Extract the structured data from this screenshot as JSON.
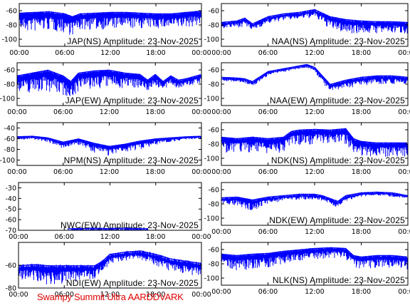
{
  "footer": "Swampy Summit Ultra AARDDVARK",
  "colors": {
    "trace": "#0000ff",
    "axis": "#000000",
    "footer": "#e00000",
    "background": "#ffffff"
  },
  "x_tick_labels": [
    "00:00",
    "06:00",
    "12:00",
    "18:00",
    "00:00"
  ],
  "chart_data": [
    {
      "type": "line",
      "title": "JAP(NS) Amplitude: 23-Nov-2025",
      "xlabel": "",
      "ylabel": "",
      "x_ticks": [
        "00:00",
        "06:00",
        "12:00",
        "18:00",
        "00:00"
      ],
      "yticks": [
        -60,
        -80,
        -100
      ],
      "ylim": [
        -110,
        -50
      ],
      "series": [
        {
          "x": [
            0,
            2,
            4,
            6,
            7,
            8,
            10,
            12,
            14,
            16,
            18,
            20,
            22,
            24
          ],
          "mean": [
            -65,
            -64,
            -63,
            -66,
            -70,
            -66,
            -65,
            -64,
            -64,
            -65,
            -66,
            -66,
            -64,
            -62
          ],
          "low": [
            -90,
            -90,
            -88,
            -92,
            -95,
            -88,
            -87,
            -86,
            -86,
            -85,
            -85,
            -86,
            -84,
            -80
          ]
        }
      ]
    },
    {
      "type": "line",
      "title": "NAA(NS) Amplitude: 23-Nov-2025",
      "xlabel": "",
      "ylabel": "",
      "x_ticks": [
        "00:00",
        "06:00",
        "12:00",
        "18:00",
        "00:00"
      ],
      "yticks": [
        -60,
        -80,
        -100
      ],
      "ylim": [
        -110,
        -50
      ],
      "series": [
        {
          "x": [
            0,
            2,
            3,
            4,
            6,
            8,
            10,
            12,
            14,
            16,
            18,
            20,
            22,
            24
          ],
          "mean": [
            -78,
            -76,
            -72,
            -80,
            -70,
            -66,
            -64,
            -60,
            -70,
            -74,
            -76,
            -77,
            -77,
            -78
          ],
          "low": [
            -85,
            -84,
            -82,
            -88,
            -78,
            -74,
            -72,
            -70,
            -86,
            -92,
            -92,
            -92,
            -92,
            -92
          ]
        }
      ]
    },
    {
      "type": "line",
      "title": "JAP(EW) Amplitude: 23-Nov-2025",
      "xlabel": "",
      "ylabel": "",
      "x_ticks": [
        "00:00",
        "06:00",
        "12:00",
        "18:00",
        "00:00"
      ],
      "yticks": [
        -60,
        -80,
        -100
      ],
      "ylim": [
        -110,
        -50
      ],
      "series": [
        {
          "x": [
            0,
            2,
            4,
            6,
            7,
            8,
            10,
            12,
            14,
            16,
            17,
            18,
            19,
            20,
            21,
            22,
            24
          ],
          "mean": [
            -70,
            -66,
            -62,
            -70,
            -78,
            -66,
            -63,
            -62,
            -66,
            -68,
            -76,
            -68,
            -78,
            -70,
            -76,
            -74,
            -68
          ],
          "low": [
            -95,
            -92,
            -90,
            -96,
            -100,
            -90,
            -88,
            -85,
            -86,
            -85,
            -90,
            -82,
            -90,
            -82,
            -86,
            -84,
            -78
          ]
        }
      ]
    },
    {
      "type": "line",
      "title": "NAA(EW) Amplitude: 23-Nov-2025",
      "xlabel": "",
      "ylabel": "",
      "x_ticks": [
        "00:00",
        "06:00",
        "12:00",
        "18:00",
        "00:00"
      ],
      "yticks": [
        -60,
        -80,
        -100
      ],
      "ylim": [
        -110,
        -50
      ],
      "series": [
        {
          "x": [
            0,
            2,
            3,
            4,
            6,
            8,
            10,
            11,
            12,
            13,
            14,
            16,
            18,
            20,
            22,
            24
          ],
          "mean": [
            -72,
            -73,
            -74,
            -78,
            -64,
            -60,
            -56,
            -54,
            -58,
            -70,
            -82,
            -76,
            -72,
            -70,
            -70,
            -72
          ],
          "low": [
            -76,
            -77,
            -78,
            -84,
            -68,
            -63,
            -59,
            -57,
            -62,
            -78,
            -92,
            -86,
            -82,
            -80,
            -80,
            -80
          ]
        }
      ]
    },
    {
      "type": "line",
      "title": "NPM(NS) Amplitude: 23-Nov-2025",
      "xlabel": "",
      "ylabel": "",
      "x_ticks": [
        "00:00",
        "06:00",
        "12:00",
        "18:00",
        "00:00"
      ],
      "yticks": [
        -40,
        -60,
        -80,
        -100
      ],
      "ylim": [
        -110,
        -30
      ],
      "series": [
        {
          "x": [
            0,
            2,
            4,
            6,
            8,
            10,
            12,
            14,
            16,
            18,
            20,
            22,
            24
          ],
          "mean": [
            -58,
            -57,
            -60,
            -68,
            -62,
            -70,
            -76,
            -72,
            -66,
            -62,
            -60,
            -58,
            -57
          ],
          "low": [
            -62,
            -62,
            -66,
            -80,
            -72,
            -86,
            -92,
            -86,
            -80,
            -72,
            -66,
            -62,
            -60
          ]
        }
      ]
    },
    {
      "type": "line",
      "title": "NDK(NS) Amplitude: 23-Nov-2025",
      "xlabel": "",
      "ylabel": "",
      "x_ticks": [
        "00:00",
        "06:00",
        "12:00",
        "18:00",
        "00:00"
      ],
      "yticks": [
        -60,
        -80,
        -100
      ],
      "ylim": [
        -110,
        -50
      ],
      "series": [
        {
          "x": [
            0,
            2,
            4,
            6,
            8,
            9,
            10,
            12,
            14,
            16,
            17,
            18,
            20,
            22,
            24
          ],
          "mean": [
            -72,
            -74,
            -72,
            -74,
            -72,
            -64,
            -62,
            -61,
            -62,
            -60,
            -74,
            -78,
            -80,
            -80,
            -80
          ],
          "low": [
            -92,
            -94,
            -92,
            -94,
            -92,
            -84,
            -82,
            -80,
            -80,
            -80,
            -92,
            -96,
            -98,
            -98,
            -98
          ]
        }
      ]
    },
    {
      "type": "line",
      "title": "NWC(EW) Amplitude: 23-Nov-2025",
      "xlabel": "",
      "ylabel": "",
      "x_ticks": [
        "00:00",
        "06:00",
        "12:00",
        "18:00",
        "00:00"
      ],
      "yticks": [
        -30,
        -40,
        -50,
        -60,
        -70
      ],
      "ylim": [
        -70,
        -25
      ],
      "series": [
        {
          "x": [
            6.5,
            8,
            10,
            12,
            14,
            16,
            17
          ],
          "mean": [
            -70,
            -70,
            -69.5,
            -70,
            -69.5,
            -70,
            -70
          ],
          "low": [
            -70,
            -70,
            -70,
            -70,
            -70,
            -70,
            -70
          ]
        }
      ]
    },
    {
      "type": "line",
      "title": "NDK(EW) Amplitude: 23-Nov-2025",
      "xlabel": "",
      "ylabel": "",
      "x_ticks": [
        "00:00",
        "06:00",
        "12:00",
        "18:00",
        "00:00"
      ],
      "yticks": [
        -60,
        -80,
        -100
      ],
      "ylim": [
        -110,
        -50
      ],
      "series": [
        {
          "x": [
            0,
            2,
            4,
            6,
            8,
            10,
            12,
            13,
            14,
            15,
            16,
            18,
            20,
            22,
            24
          ],
          "mean": [
            -73,
            -72,
            -76,
            -72,
            -70,
            -68,
            -68,
            -70,
            -74,
            -78,
            -70,
            -66,
            -65,
            -66,
            -70
          ],
          "low": [
            -80,
            -82,
            -90,
            -80,
            -76,
            -74,
            -74,
            -76,
            -80,
            -86,
            -76,
            -70,
            -68,
            -70,
            -72
          ]
        }
      ]
    },
    {
      "type": "line",
      "title": "NDI(EW) Amplitude: 23-Nov-2025",
      "xlabel": "",
      "ylabel": "",
      "x_ticks": [
        "00:00",
        "06:00",
        "12:00",
        "18:00",
        "00:00"
      ],
      "yticks": [
        -60,
        -80
      ],
      "ylim": [
        -80,
        -40
      ],
      "series": [
        {
          "x": [
            0,
            2,
            4,
            6,
            8,
            10,
            11,
            12,
            14,
            16,
            18,
            20,
            22,
            24
          ],
          "mean": [
            -62,
            -61,
            -62,
            -62,
            -62,
            -62,
            -58,
            -52,
            -50,
            -49,
            -52,
            -56,
            -58,
            -60
          ],
          "low": [
            -72,
            -74,
            -78,
            -76,
            -74,
            -72,
            -66,
            -60,
            -56,
            -55,
            -60,
            -66,
            -68,
            -70
          ]
        }
      ]
    },
    {
      "type": "line",
      "title": "NLK(NS) Amplitude: 23-Nov-2025",
      "xlabel": "",
      "ylabel": "",
      "x_ticks": [
        "00:00",
        "06:00",
        "12:00",
        "18:00",
        "00:00"
      ],
      "yticks": [
        -60,
        -80,
        -100
      ],
      "ylim": [
        -110,
        -50
      ],
      "series": [
        {
          "x": [
            0,
            2,
            4,
            6,
            8,
            10,
            12,
            14,
            16,
            17,
            18,
            20,
            22,
            24
          ],
          "mean": [
            -68,
            -70,
            -68,
            -67,
            -64,
            -62,
            -60,
            -59,
            -60,
            -70,
            -72,
            -70,
            -70,
            -72
          ],
          "low": [
            -86,
            -90,
            -88,
            -86,
            -80,
            -76,
            -74,
            -72,
            -74,
            -84,
            -88,
            -86,
            -86,
            -88
          ]
        }
      ]
    }
  ]
}
